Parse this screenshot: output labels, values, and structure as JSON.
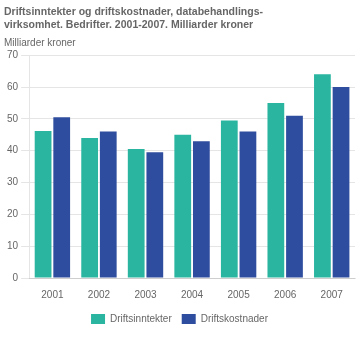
{
  "chart_data": {
    "type": "bar",
    "title": [
      "Driftsinntekter og driftskostnader, databehandlings-",
      "virksomhet. Bedrifter. 2001-2007. Milliarder kroner"
    ],
    "ylabel": "Milliarder kroner",
    "categories": [
      "2001",
      "2002",
      "2003",
      "2004",
      "2005",
      "2006",
      "2007"
    ],
    "series": [
      {
        "name": "Driftsinntekter",
        "color": "#2ab5a0",
        "values": [
          46.2,
          44.0,
          40.5,
          45.0,
          49.5,
          55.0,
          64.0
        ]
      },
      {
        "name": "Driftskostnader",
        "color": "#2e4d9e",
        "values": [
          50.5,
          46.0,
          39.5,
          43.0,
          46.0,
          51.0,
          60.0
        ]
      }
    ],
    "ylim": [
      0,
      70
    ],
    "yticks": [
      0,
      10,
      20,
      30,
      40,
      50,
      60,
      70
    ],
    "grid": true,
    "legend": "bottom"
  }
}
